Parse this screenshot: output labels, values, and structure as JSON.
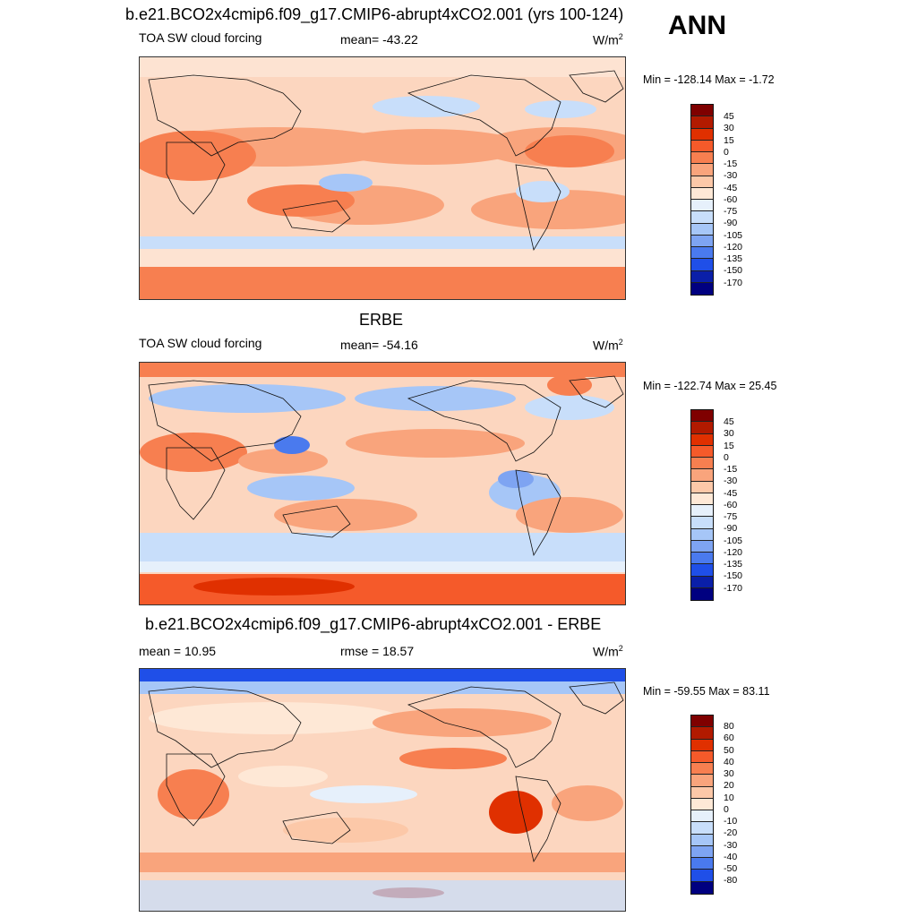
{
  "figure": {
    "season": "ANN",
    "panel1": {
      "header": "b.e21.BCO2x4cmip6.f09_g17.CMIP6-abrupt4xCO2.001 (yrs 100-124)",
      "variable": "TOA SW cloud forcing",
      "stat": "mean= -43.22",
      "units_base": "W/m",
      "units_exp": "2",
      "minmax": "Min = -128.14 Max =  -1.72"
    },
    "panel2": {
      "header": "ERBE",
      "variable": "TOA SW cloud forcing",
      "stat": "mean= -54.16",
      "units_base": "W/m",
      "units_exp": "2",
      "minmax": "Min = -122.74 Max =  25.45"
    },
    "panel3": {
      "header": "b.e21.BCO2x4cmip6.f09_g17.CMIP6-abrupt4xCO2.001 - ERBE",
      "stat_left": "mean =  10.95",
      "stat_mid": "rmse =  18.57",
      "units_base": "W/m",
      "units_exp": "2",
      "minmax": "Min = -59.55 Max =  83.11"
    }
  },
  "colorbars": {
    "main_levels": [
      "45",
      "30",
      "15",
      "0",
      "-15",
      "-30",
      "-45",
      "-60",
      "-75",
      "-90",
      "-105",
      "-120",
      "-135",
      "-150",
      "-170"
    ],
    "main_colors": [
      "#7f0000",
      "#b21a00",
      "#e03000",
      "#f55a2a",
      "#f77f50",
      "#f9a47c",
      "#fcc8a8",
      "#fee8d6",
      "#e6f0fb",
      "#c8defa",
      "#a6c6f7",
      "#7ea4f2",
      "#4a7aee",
      "#1f4fe8",
      "#0a1fa8",
      "#000080"
    ],
    "diff_levels": [
      "80",
      "60",
      "50",
      "40",
      "30",
      "20",
      "10",
      "0",
      "-10",
      "-20",
      "-30",
      "-40",
      "-50",
      "-80"
    ],
    "diff_colors": [
      "#7f0000",
      "#b21a00",
      "#e03000",
      "#f55a2a",
      "#f77f50",
      "#f9a47c",
      "#fcc8a8",
      "#fee8d6",
      "#e6f0fb",
      "#c8defa",
      "#a6c6f7",
      "#7ea4f2",
      "#4a7aee",
      "#1f4fe8",
      "#000080"
    ]
  }
}
